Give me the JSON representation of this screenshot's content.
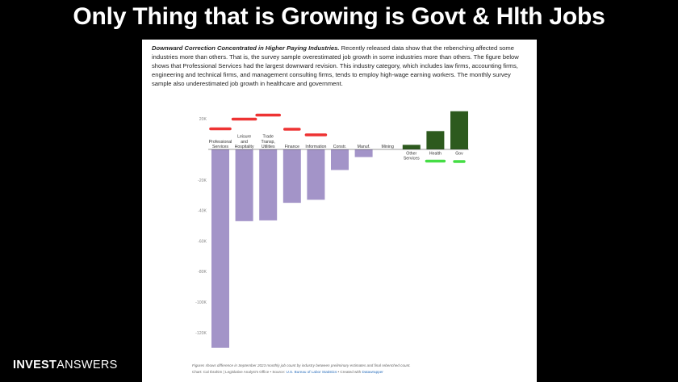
{
  "slide": {
    "title": "Only Thing that is Growing is Govt & Hlth Jobs"
  },
  "description": {
    "lead": "Downward Correction Concentrated in Higher Paying Industries.",
    "body": " Recently released data show that the rebenching affected some industries more than others. That is, the survey sample overestimated job growth in some industries more than others. The figure below shows that Professional Services had the largest downward revision. This industry category, which includes law firms, accounting firms, engineering and technical firms, and management consulting firms, tends to employ high-wage earning workers. The monthly survey sample also underestimated job growth in healthcare and government."
  },
  "chart_data": {
    "type": "bar",
    "categories": [
      [
        "Professional",
        "Services"
      ],
      [
        "Leisure",
        "and",
        "Hospitality"
      ],
      [
        "Trade",
        "Transp,",
        "Utilities"
      ],
      [
        "Finance"
      ],
      [
        "Information"
      ],
      [
        "Constr."
      ],
      [
        "Manuf."
      ],
      [
        "Mining"
      ],
      [
        "Other",
        "Services"
      ],
      [
        "Health"
      ],
      [
        "Gov"
      ]
    ],
    "values": [
      -130000,
      -47000,
      -46500,
      -35000,
      -33000,
      -13500,
      -5000,
      0,
      3000,
      12000,
      25000
    ],
    "colors": [
      "#a394c8",
      "#a394c8",
      "#a394c8",
      "#a394c8",
      "#a394c8",
      "#a394c8",
      "#a394c8",
      "#a394c8",
      "#2d5a1e",
      "#2d5a1e",
      "#2d5a1e"
    ],
    "y_ticks": [
      20000,
      0,
      -20000,
      -40000,
      -60000,
      -80000,
      -100000,
      -120000
    ],
    "y_tick_labels": [
      "20K",
      "",
      "-20K",
      "-40K",
      "-60K",
      "-80K",
      "-100K",
      "-120K"
    ],
    "ylim": [
      -130000,
      24000
    ],
    "grid": false,
    "annotations": {
      "red_marks": [
        "Professional Services",
        "Leisure and Hospitality",
        "Trade Transp, Utilities",
        "Finance",
        "Information"
      ],
      "red_color": "#ee3333",
      "green_marks": [
        "Health",
        "Gov"
      ],
      "green_color": "#44dd44"
    }
  },
  "footnote": {
    "note": "Figures shows difference in September 2023 monthly job count by industry between preliminary estimates and final rebenched count.",
    "credit_prefix": "Chart: Cal Ibrahim | Legislative Analyst's Office • Source: ",
    "source_link": "U.S. Bureau of Labor Statistics",
    "credit_mid": " • Created with ",
    "tool_link": "Datawrapper"
  },
  "brand": {
    "part1": "INVEST",
    "part2": "ANSWERS"
  }
}
